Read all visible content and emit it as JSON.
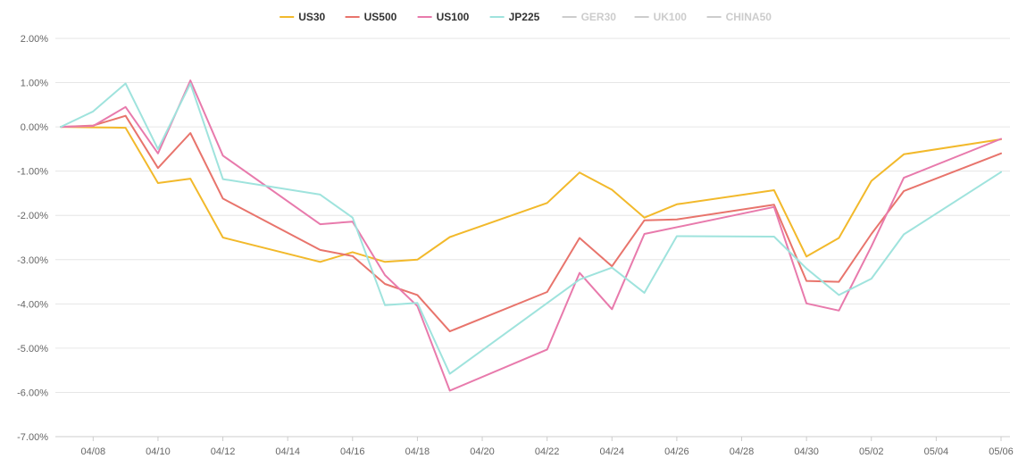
{
  "chart_data": {
    "type": "line",
    "title": "",
    "xlabel": "",
    "ylabel": "",
    "ylim": [
      -7,
      2
    ],
    "y_ticks": [
      2,
      1,
      0,
      -1,
      -2,
      -3,
      -4,
      -5,
      -6,
      -7
    ],
    "y_tick_labels": [
      "2.00%",
      "1.00%",
      "0.00%",
      "-1.00%",
      "-2.00%",
      "-3.00%",
      "-4.00%",
      "-5.00%",
      "-6.00%",
      "-7.00%"
    ],
    "x_range": [
      "04/07",
      "05/06"
    ],
    "x_tick_labels": [
      "04/08",
      "04/10",
      "04/12",
      "04/14",
      "04/16",
      "04/18",
      "04/20",
      "04/22",
      "04/24",
      "04/26",
      "04/28",
      "04/30",
      "05/02",
      "05/04",
      "05/06"
    ],
    "grid": "horizontal",
    "legend_position": "top-center",
    "series": [
      {
        "name": "US30",
        "color": "#f2b92b",
        "visible": true,
        "points": [
          [
            "04/07",
            0.0
          ],
          [
            "04/08",
            -0.01
          ],
          [
            "04/09",
            -0.02
          ],
          [
            "04/10",
            -1.27
          ],
          [
            "04/11",
            -1.17
          ],
          [
            "04/12",
            -2.5
          ],
          [
            "04/15",
            -3.05
          ],
          [
            "04/16",
            -2.83
          ],
          [
            "04/17",
            -3.05
          ],
          [
            "04/18",
            -3.0
          ],
          [
            "04/19",
            -2.49
          ],
          [
            "04/22",
            -1.72
          ],
          [
            "04/23",
            -1.03
          ],
          [
            "04/24",
            -1.42
          ],
          [
            "04/25",
            -2.05
          ],
          [
            "04/26",
            -1.75
          ],
          [
            "04/29",
            -1.43
          ],
          [
            "04/30",
            -2.93
          ],
          [
            "05/01",
            -2.51
          ],
          [
            "05/02",
            -1.22
          ],
          [
            "05/03",
            -0.62
          ],
          [
            "05/06",
            -0.28
          ]
        ]
      },
      {
        "name": "US500",
        "color": "#e8746c",
        "visible": true,
        "points": [
          [
            "04/07",
            0.0
          ],
          [
            "04/08",
            0.03
          ],
          [
            "04/09",
            0.25
          ],
          [
            "04/10",
            -0.93
          ],
          [
            "04/11",
            -0.14
          ],
          [
            "04/12",
            -1.62
          ],
          [
            "04/15",
            -2.78
          ],
          [
            "04/16",
            -2.92
          ],
          [
            "04/17",
            -3.55
          ],
          [
            "04/18",
            -3.8
          ],
          [
            "04/19",
            -4.62
          ],
          [
            "04/22",
            -3.73
          ],
          [
            "04/23",
            -2.51
          ],
          [
            "04/24",
            -3.15
          ],
          [
            "04/25",
            -2.11
          ],
          [
            "04/26",
            -2.09
          ],
          [
            "04/29",
            -1.76
          ],
          [
            "04/30",
            -3.48
          ],
          [
            "05/01",
            -3.5
          ],
          [
            "05/02",
            -2.42
          ],
          [
            "05/03",
            -1.45
          ],
          [
            "05/06",
            -0.6
          ]
        ]
      },
      {
        "name": "US100",
        "color": "#e87aac",
        "visible": true,
        "points": [
          [
            "04/07",
            0.0
          ],
          [
            "04/08",
            0.02
          ],
          [
            "04/09",
            0.45
          ],
          [
            "04/10",
            -0.6
          ],
          [
            "04/11",
            1.05
          ],
          [
            "04/12",
            -0.65
          ],
          [
            "04/15",
            -2.2
          ],
          [
            "04/16",
            -2.14
          ],
          [
            "04/17",
            -3.35
          ],
          [
            "04/18",
            -4.05
          ],
          [
            "04/19",
            -5.96
          ],
          [
            "04/22",
            -5.03
          ],
          [
            "04/23",
            -3.3
          ],
          [
            "04/24",
            -4.12
          ],
          [
            "04/25",
            -2.42
          ],
          [
            "04/29",
            -1.81
          ],
          [
            "04/30",
            -3.99
          ],
          [
            "05/01",
            -4.15
          ],
          [
            "05/02",
            -2.7
          ],
          [
            "05/03",
            -1.15
          ],
          [
            "05/06",
            -0.27
          ]
        ]
      },
      {
        "name": "JP225",
        "color": "#9fe3dd",
        "visible": true,
        "points": [
          [
            "04/07",
            0.0
          ],
          [
            "04/08",
            0.35
          ],
          [
            "04/09",
            0.98
          ],
          [
            "04/10",
            -0.5
          ],
          [
            "04/11",
            0.98
          ],
          [
            "04/12",
            -1.18
          ],
          [
            "04/15",
            -1.53
          ],
          [
            "04/16",
            -2.05
          ],
          [
            "04/17",
            -4.03
          ],
          [
            "04/18",
            -3.98
          ],
          [
            "04/19",
            -5.58
          ],
          [
            "04/23",
            -3.45
          ],
          [
            "04/24",
            -3.18
          ],
          [
            "04/25",
            -3.75
          ],
          [
            "04/26",
            -2.47
          ],
          [
            "04/29",
            -2.48
          ],
          [
            "04/30",
            -3.2
          ],
          [
            "05/01",
            -3.8
          ],
          [
            "05/02",
            -3.43
          ],
          [
            "05/03",
            -2.43
          ],
          [
            "05/06",
            -1.02
          ]
        ]
      },
      {
        "name": "GER30",
        "color": "#cccccc",
        "visible": false,
        "points": []
      },
      {
        "name": "UK100",
        "color": "#cccccc",
        "visible": false,
        "points": []
      },
      {
        "name": "CHINA50",
        "color": "#cccccc",
        "visible": false,
        "points": []
      }
    ]
  }
}
